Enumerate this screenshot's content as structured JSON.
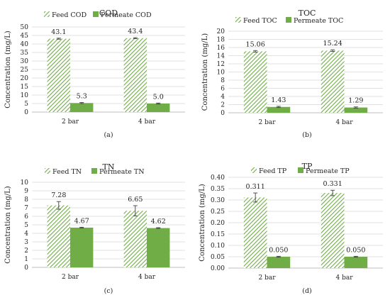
{
  "figure": {
    "captions": [
      "(a)",
      "(b)",
      "(c)",
      "(d)"
    ],
    "colors": {
      "feed": "#70ad47",
      "permeate": "#70ad47",
      "grid": "#d9d9d9",
      "axis": "#bfbfbf",
      "error": "#404040"
    }
  },
  "chart_data": [
    {
      "type": "bar",
      "title": "COD",
      "ylabel": "Concentration (mg/L)",
      "categories": [
        "2 bar",
        "4 bar"
      ],
      "ylim": [
        0,
        50
      ],
      "ytick_step": 5,
      "decimals": 0,
      "legend_position": "top",
      "series": [
        {
          "name": "Feed COD",
          "values": [
            43.1,
            43.4
          ],
          "labels": [
            "43.1",
            "43.4"
          ],
          "errors": [
            0.3,
            0.3
          ],
          "fill": "hatched"
        },
        {
          "name": "Permeate COD",
          "values": [
            5.3,
            5.0
          ],
          "labels": [
            "5.3",
            "5.0"
          ],
          "errors": [
            0.3,
            0.3
          ],
          "fill": "solid"
        }
      ]
    },
    {
      "type": "bar",
      "title": "TOC",
      "ylabel": "Concentration (mg/L)",
      "categories": [
        "2 bar",
        "4 bar"
      ],
      "ylim": [
        0,
        20
      ],
      "ytick_step": 2,
      "decimals": 0,
      "legend_position": "top",
      "series": [
        {
          "name": "Feed TOC",
          "values": [
            15.06,
            15.24
          ],
          "labels": [
            "15.06",
            "15.24"
          ],
          "errors": [
            0.2,
            0.2
          ],
          "fill": "hatched"
        },
        {
          "name": "Permeate TOC",
          "values": [
            1.43,
            1.29
          ],
          "labels": [
            "1.43",
            "1.29"
          ],
          "errors": [
            0.15,
            0.15
          ],
          "fill": "solid"
        }
      ]
    },
    {
      "type": "bar",
      "title": "TN",
      "ylabel": "Concentration (mg/L)",
      "categories": [
        "2 bar",
        "4 bar"
      ],
      "ylim": [
        0,
        10
      ],
      "ytick_step": 1,
      "decimals": 0,
      "legend_position": "top",
      "series": [
        {
          "name": "Feed TN",
          "values": [
            7.28,
            6.65
          ],
          "labels": [
            "7.28",
            "6.65"
          ],
          "errors": [
            0.45,
            0.6
          ],
          "fill": "hatched"
        },
        {
          "name": "Permeate TN",
          "values": [
            4.67,
            4.62
          ],
          "labels": [
            "4.67",
            "4.62"
          ],
          "errors": [
            0.05,
            0.05
          ],
          "fill": "solid"
        }
      ]
    },
    {
      "type": "bar",
      "title": "TP",
      "ylabel": "Concentration (mg/L)",
      "categories": [
        "2 bar",
        "4 bar"
      ],
      "ylim": [
        0,
        0.4
      ],
      "ytick_step": 0.05,
      "decimals": 2,
      "legend_position": "top",
      "series": [
        {
          "name": "Feed TP",
          "values": [
            0.311,
            0.331
          ],
          "labels": [
            "0.311",
            "0.331"
          ],
          "errors": [
            0.02,
            0.012
          ],
          "fill": "hatched"
        },
        {
          "name": "Permeate TP",
          "values": [
            0.05,
            0.05
          ],
          "labels": [
            "0.050",
            "0.050"
          ],
          "errors": [
            0.002,
            0.002
          ],
          "fill": "solid"
        }
      ]
    }
  ]
}
